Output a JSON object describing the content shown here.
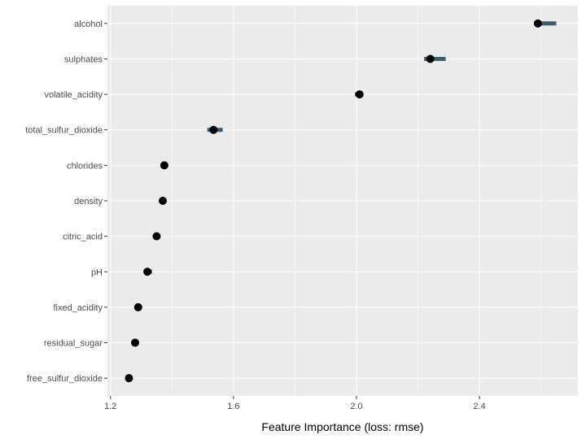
{
  "chart_data": {
    "type": "scatter",
    "title": "",
    "xlabel": "Feature Importance (loss: rmse)",
    "ylabel": "",
    "xlim": [
      1.19,
      2.72
    ],
    "x_ticks": [
      1.2,
      1.6,
      2.0,
      2.4
    ],
    "x_tick_labels": [
      "1.2",
      "1.6",
      "2.0",
      "2.4"
    ],
    "grid": true,
    "legend": "none",
    "features": [
      "alcohol",
      "sulphates",
      "volatile_acidity",
      "total_sulfur_dioxide",
      "chlorides",
      "density",
      "citric_acid",
      "pH",
      "fixed_acidity",
      "residual_sugar",
      "free_sulfur_dioxide"
    ],
    "importance": [
      2.59,
      2.24,
      2.01,
      1.535,
      1.375,
      1.37,
      1.35,
      1.32,
      1.29,
      1.28,
      1.26
    ],
    "range_low": [
      2.58,
      2.22,
      1.995,
      1.515,
      1.37,
      1.36,
      1.34,
      1.31,
      1.285,
      1.275,
      1.255
    ],
    "range_high": [
      2.65,
      2.29,
      2.015,
      1.565,
      1.38,
      1.38,
      1.36,
      1.335,
      1.295,
      1.285,
      1.265
    ],
    "colors": {
      "panel": "#ebebeb",
      "grid": "#ffffff",
      "point": "#000000",
      "range": "#3f5e6b",
      "tick": "#333333"
    }
  }
}
